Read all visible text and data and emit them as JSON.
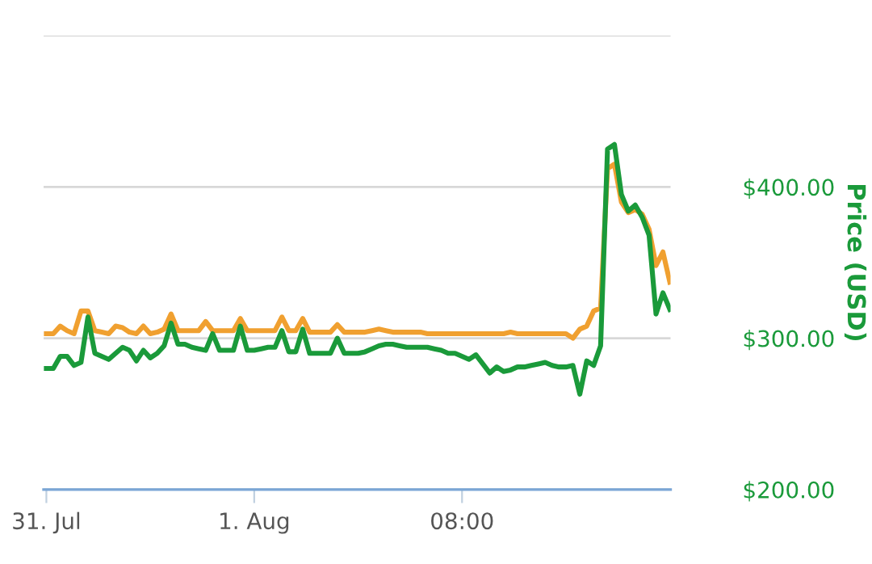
{
  "chart_data": {
    "type": "line",
    "ylabel": "Price (USD)",
    "categories": [
      "31. Jul",
      null,
      null,
      null,
      null,
      null,
      null,
      null,
      null,
      null,
      null,
      null,
      null,
      null,
      null,
      null,
      null,
      null,
      null,
      null,
      null,
      null,
      null,
      null,
      null,
      null,
      null,
      null,
      null,
      null,
      "1. Aug",
      null,
      null,
      null,
      null,
      null,
      null,
      null,
      null,
      null,
      null,
      null,
      null,
      null,
      null,
      null,
      null,
      null,
      null,
      null,
      null,
      null,
      null,
      null,
      null,
      null,
      null,
      null,
      null,
      null,
      "08:00",
      null,
      null,
      null,
      null,
      null,
      null,
      null,
      null,
      null,
      null,
      null,
      null,
      null,
      null,
      null,
      null,
      null,
      null,
      null,
      null,
      null,
      null,
      null,
      null,
      null,
      null,
      null,
      null,
      null,
      null
    ],
    "ylim": [
      200,
      500
    ],
    "yticks": [
      {
        "value": 200,
        "label": "$200.00"
      },
      {
        "value": 300,
        "label": "$300.00"
      },
      {
        "value": 400,
        "label": "$400.00"
      },
      {
        "value": 500,
        "label": null
      }
    ],
    "grid": "y",
    "legend": false,
    "marker": "none",
    "line_style": "solid",
    "series": [
      {
        "color": "#f0a030",
        "values": [
          303,
          303,
          308,
          305,
          303,
          318,
          318,
          305,
          304,
          303,
          308,
          307,
          304,
          303,
          308,
          303,
          304,
          306,
          316,
          305,
          305,
          305,
          305,
          311,
          305,
          305,
          305,
          305,
          313,
          305,
          305,
          305,
          305,
          305,
          314,
          305,
          305,
          313,
          304,
          304,
          304,
          304,
          309,
          304,
          304,
          304,
          304,
          305,
          306,
          305,
          304,
          304,
          304,
          304,
          304,
          303,
          303,
          303,
          303,
          303,
          303,
          303,
          303,
          303,
          303,
          303,
          303,
          304,
          303,
          303,
          303,
          303,
          303,
          303,
          303,
          303,
          300,
          306,
          308,
          318,
          320,
          412,
          415,
          390,
          383,
          385,
          382,
          372,
          348,
          357,
          337
        ]
      },
      {
        "color": "#1a9a3a",
        "values": [
          280,
          280,
          288,
          288,
          282,
          284,
          314,
          290,
          288,
          286,
          290,
          294,
          292,
          285,
          292,
          287,
          290,
          295,
          310,
          296,
          296,
          294,
          293,
          292,
          303,
          292,
          292,
          292,
          308,
          292,
          292,
          293,
          294,
          294,
          305,
          291,
          291,
          306,
          290,
          290,
          290,
          290,
          300,
          290,
          290,
          290,
          291,
          293,
          295,
          296,
          296,
          295,
          294,
          294,
          294,
          294,
          293,
          292,
          290,
          290,
          288,
          286,
          289,
          283,
          277,
          281,
          278,
          279,
          281,
          281,
          282,
          283,
          284,
          282,
          281,
          281,
          282,
          263,
          285,
          282,
          295,
          425,
          428,
          395,
          384,
          388,
          380,
          368,
          316,
          330,
          319
        ]
      }
    ]
  }
}
